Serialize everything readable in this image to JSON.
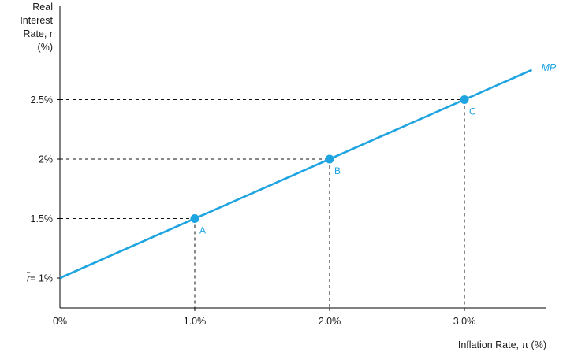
{
  "chart_data": {
    "type": "line",
    "xlabel": "Inflation Rate, π (%)",
    "ylabel_lines": [
      "Real",
      "Interest",
      "Rate, r",
      "(%)"
    ],
    "x_ticks": [
      {
        "value": 0,
        "label": "0%"
      },
      {
        "value": 1,
        "label": "1.0%"
      },
      {
        "value": 2,
        "label": "2.0%"
      },
      {
        "value": 3,
        "label": "3.0%"
      }
    ],
    "y_ticks": [
      {
        "value": 1,
        "label": "= 1%",
        "prefix": "r"
      },
      {
        "value": 1.5,
        "label": "1.5%"
      },
      {
        "value": 2,
        "label": "2%"
      },
      {
        "value": 2.5,
        "label": "2.5%"
      }
    ],
    "xlim": [
      0,
      3.6
    ],
    "ylim": [
      0.75,
      2.83
    ],
    "grid": false,
    "series": [
      {
        "name": "MP",
        "color": "#1ea4e0",
        "x": [
          0,
          3.5
        ],
        "y": [
          1.0,
          2.75
        ]
      }
    ],
    "points": [
      {
        "label": "A",
        "x": 1.0,
        "y": 1.5
      },
      {
        "label": "B",
        "x": 2.0,
        "y": 2.0
      },
      {
        "label": "C",
        "x": 3.0,
        "y": 2.5
      }
    ]
  }
}
